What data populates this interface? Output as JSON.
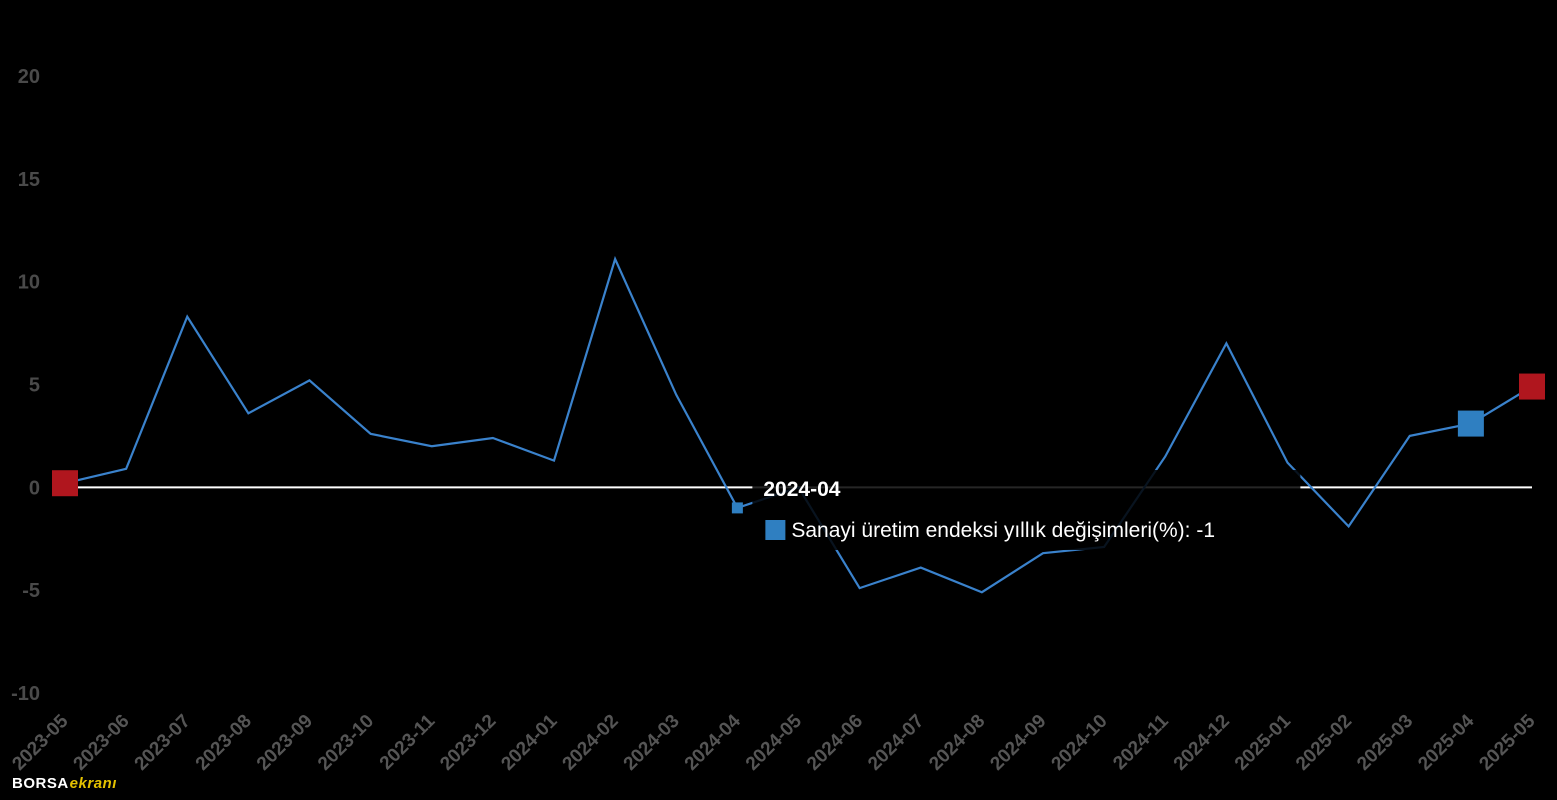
{
  "logo": {
    "part1": "BORSA",
    "part2": "ekranı"
  },
  "tooltip": {
    "title": "2024-04",
    "text": "Sanayi üretim endeksi yıllık değişimleri(%): -1"
  },
  "chart_data": {
    "type": "line",
    "categories": [
      "2023-05",
      "2023-06",
      "2023-07",
      "2023-08",
      "2023-09",
      "2023-10",
      "2023-11",
      "2023-12",
      "2024-01",
      "2024-02",
      "2024-03",
      "2024-04",
      "2024-05",
      "2024-06",
      "2024-07",
      "2024-08",
      "2024-09",
      "2024-10",
      "2024-11",
      "2024-12",
      "2025-01",
      "2025-02",
      "2025-03",
      "2025-04",
      "2025-05"
    ],
    "series": [
      {
        "name": "Sanayi üretim endeksi yıllık değişimleri(%)",
        "values": [
          0.2,
          0.9,
          8.3,
          3.6,
          5.2,
          2.6,
          2.0,
          2.4,
          1.3,
          11.1,
          4.5,
          -1.0,
          0.0,
          -4.9,
          -3.9,
          -5.1,
          -3.2,
          -2.9,
          1.5,
          7.0,
          1.2,
          -1.9,
          2.5,
          3.1,
          4.9
        ]
      }
    ],
    "ylim": [
      -10,
      20
    ],
    "yticks": [
      -10,
      -5,
      0,
      5,
      10,
      15,
      20
    ],
    "highlight": {
      "min_max_marker_color": "#b0161e",
      "hover_marker_color": "#2f7fc1",
      "hover_index": 11,
      "selected_index": 23
    },
    "line_color": "#3a82cc",
    "zero_line_color": "#ffffff",
    "title": "",
    "xlabel": "",
    "ylabel": ""
  }
}
